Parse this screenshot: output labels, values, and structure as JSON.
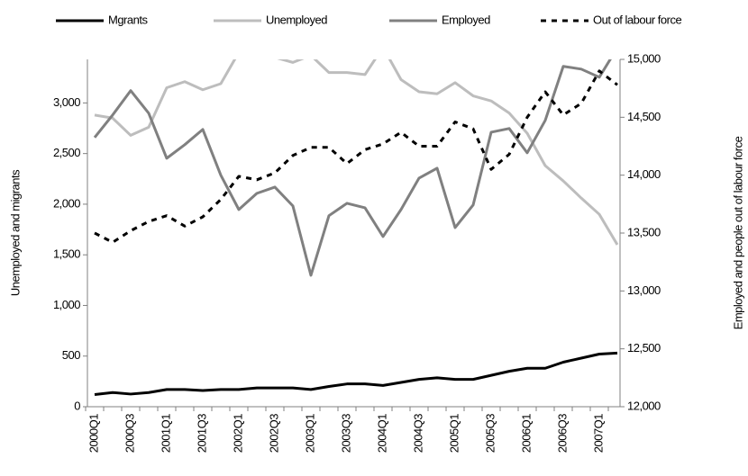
{
  "chart_data": {
    "type": "line",
    "y_label": "Unemployed and migrants",
    "y2_label": "Employed and people out of labour force",
    "categories": [
      "2000Q1",
      null,
      "2000Q3",
      null,
      "2001Q1",
      null,
      "2001Q3",
      null,
      "2002Q1",
      null,
      "2002Q3",
      null,
      "2003Q1",
      null,
      "2003Q3",
      null,
      "2004Q1",
      null,
      "2004Q3",
      null,
      "2005Q1",
      null,
      "2005Q3",
      null,
      "2006Q1",
      null,
      "2006Q3",
      null,
      "2007Q1",
      null
    ],
    "ylim": [
      0,
      3430
    ],
    "yticks": [
      0,
      500,
      {
        "value": 1000,
        "label": "1,000"
      },
      {
        "value": 1500,
        "label": "1,500"
      },
      {
        "value": 2000,
        "label": "2,000"
      },
      {
        "value": 2500,
        "label": "2,500"
      },
      {
        "value": 3000,
        "label": "3,000"
      }
    ],
    "y2lim": [
      12000,
      15000
    ],
    "y2ticks": [
      {
        "value": 12000,
        "label": "12,000"
      },
      {
        "value": 12500,
        "label": "12,500"
      },
      {
        "value": 13000,
        "label": "13,000"
      },
      {
        "value": 13500,
        "label": "13,500"
      },
      {
        "value": 14000,
        "label": "14,000"
      },
      {
        "value": 14500,
        "label": "14,500"
      },
      {
        "value": 15000,
        "label": "15,000"
      }
    ],
    "grid": false,
    "legend": "top",
    "series": [
      {
        "name": "Mgrants",
        "color": "#000000",
        "width": 3,
        "dash": false,
        "axis": "y",
        "values": [
          120,
          140,
          125,
          140,
          170,
          170,
          160,
          170,
          170,
          185,
          185,
          185,
          170,
          200,
          225,
          225,
          210,
          240,
          270,
          285,
          270,
          270,
          310,
          350,
          380,
          380,
          440,
          480,
          520,
          530
        ]
      },
      {
        "name": "Unemployed",
        "color": "#bdbdbd",
        "width": 3,
        "dash": false,
        "axis": "y",
        "values": [
          2880,
          2850,
          2680,
          2760,
          3150,
          3210,
          3130,
          3190,
          3500,
          3550,
          3450,
          3400,
          3470,
          3300,
          3300,
          3280,
          3550,
          3230,
          3110,
          3090,
          3200,
          3070,
          3020,
          2900,
          2700,
          2380,
          2230,
          2060,
          1900,
          1600
        ]
      },
      {
        "name": "Employed",
        "color": "#808080",
        "width": 3,
        "dash": false,
        "axis": "y2",
        "values": [
          14325,
          14520,
          14730,
          14535,
          14146,
          14263,
          14395,
          14000,
          13703,
          13843,
          13897,
          13734,
          13135,
          13650,
          13757,
          13718,
          13470,
          13703,
          13975,
          14060,
          13547,
          13742,
          14371,
          14403,
          14193,
          14473,
          14940,
          14916,
          14846,
          15100
        ]
      },
      {
        "name": "Out of labour force",
        "color": "#000000",
        "width": 3,
        "dash": true,
        "axis": "y2",
        "values": [
          13500,
          13420,
          13520,
          13600,
          13650,
          13560,
          13640,
          13790,
          13990,
          13960,
          14020,
          14170,
          14240,
          14240,
          14100,
          14220,
          14270,
          14370,
          14250,
          14250,
          14460,
          14400,
          14050,
          14180,
          14500,
          14720,
          14520,
          14620,
          14900,
          14780
        ]
      }
    ]
  }
}
